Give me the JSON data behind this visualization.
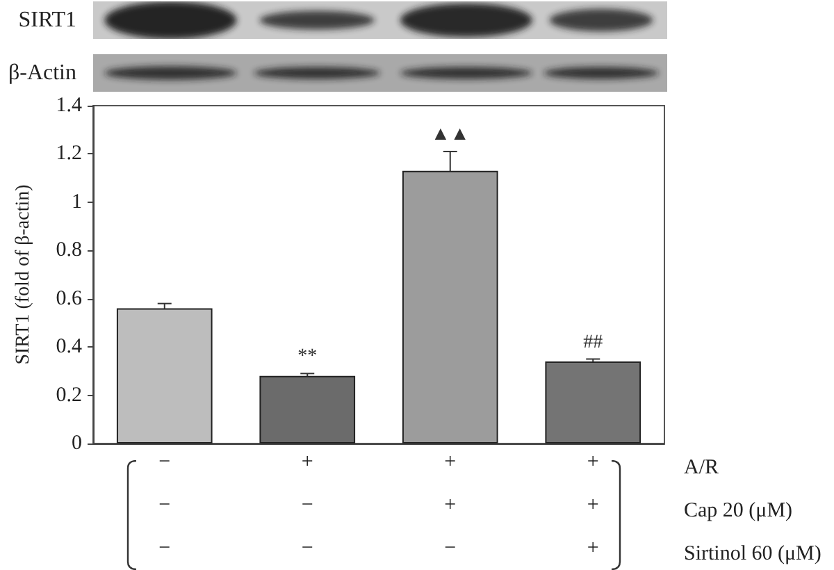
{
  "chart_data": {
    "type": "bar",
    "ylabel": "SIRT1 (fold of β-actin)",
    "categories": [
      "−\n−\n−",
      "+\n−\n−",
      "+\n+\n−",
      "+\n+\n+"
    ],
    "values": [
      0.56,
      0.28,
      1.13,
      0.34
    ],
    "errors": [
      0.02,
      0.01,
      0.08,
      0.01
    ],
    "colors": [
      "#bdbdbd",
      "#6b6b6b",
      "#9c9c9c",
      "#747474"
    ],
    "ylim": [
      0,
      1.4
    ],
    "yticks": [
      0,
      0.2,
      0.4,
      0.6,
      0.8,
      1,
      1.2,
      1.4
    ],
    "grid": false,
    "annotations": [
      "SIRT1",
      "β-Actin",
      "A/R",
      "Cap 20 (μM)",
      "Sirtinol 60 (μM)",
      {
        "text": "**",
        "x": "+\n−\n−",
        "y": 0.29
      },
      {
        "text": "▲▲",
        "x": "+\n+\n−",
        "y": 1.21
      },
      {
        "text": "##",
        "x": "+\n+\n+",
        "y": 0.35
      }
    ]
  }
}
